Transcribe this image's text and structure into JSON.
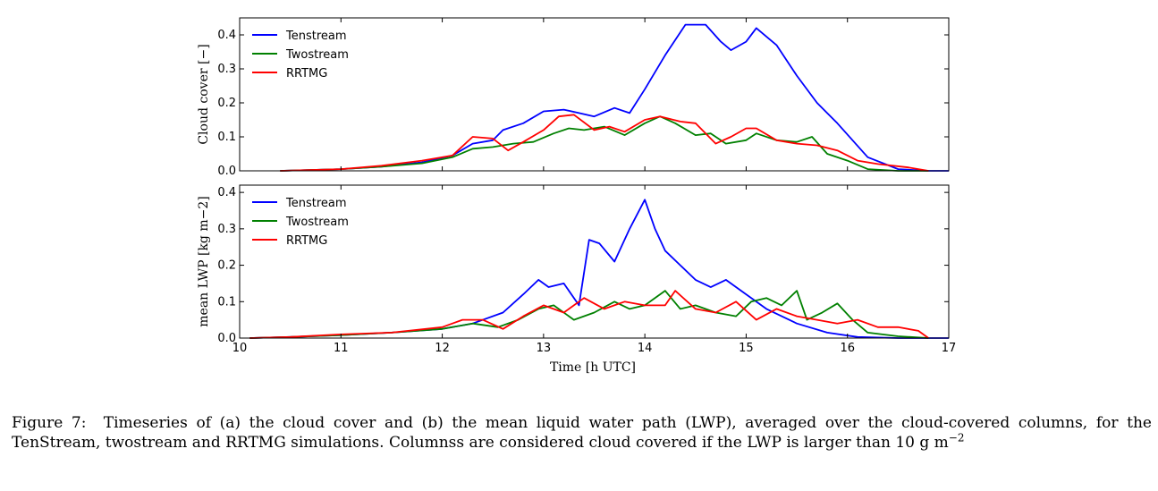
{
  "figure": {
    "caption_prefix": "Figure 7:",
    "caption_body": "Timeseries of (a) the cloud cover and (b) the mean liquid water path (LWP), averaged over the cloud-covered columns, for the TenStream, twostream and RRTMG simulations. Columnss are considered cloud covered if the LWP is larger than 10 g m",
    "caption_exponent": "−2"
  },
  "colors": {
    "Tenstream": "#0000ff",
    "Twostream": "#008000",
    "RRTMG": "#ff0000"
  },
  "chart_data": [
    {
      "type": "line",
      "title": "",
      "xlabel": "",
      "ylabel": "Cloud cover [−]",
      "xlim": [
        10,
        17
      ],
      "ylim": [
        0.0,
        0.45
      ],
      "yticks": [
        0.0,
        0.1,
        0.2,
        0.3,
        0.4
      ],
      "ytick_labels": [
        "0.0",
        "0.1",
        "0.2",
        "0.3",
        "0.4"
      ],
      "xticks": [
        10,
        11,
        12,
        13,
        14,
        15,
        16,
        17
      ],
      "legend_position": "top-left",
      "series": [
        {
          "name": "Tenstream",
          "x": [
            10.4,
            11.0,
            11.4,
            11.8,
            12.1,
            12.3,
            12.5,
            12.6,
            12.8,
            13.0,
            13.2,
            13.35,
            13.5,
            13.7,
            13.85,
            14.0,
            14.2,
            14.4,
            14.6,
            14.75,
            14.85,
            15.0,
            15.1,
            15.3,
            15.5,
            15.7,
            15.9,
            16.2,
            16.5,
            16.8,
            17.0
          ],
          "y": [
            0.0,
            0.005,
            0.012,
            0.025,
            0.045,
            0.08,
            0.09,
            0.12,
            0.14,
            0.175,
            0.18,
            0.17,
            0.16,
            0.185,
            0.17,
            0.24,
            0.34,
            0.43,
            0.43,
            0.38,
            0.355,
            0.38,
            0.42,
            0.37,
            0.28,
            0.2,
            0.14,
            0.04,
            0.005,
            0.0,
            0.0
          ]
        },
        {
          "name": "Twostream",
          "x": [
            10.4,
            11.0,
            11.4,
            11.8,
            12.1,
            12.3,
            12.5,
            12.7,
            12.9,
            13.1,
            13.25,
            13.4,
            13.6,
            13.8,
            14.0,
            14.15,
            14.3,
            14.5,
            14.65,
            14.8,
            15.0,
            15.1,
            15.3,
            15.5,
            15.65,
            15.8,
            16.0,
            16.2,
            16.5,
            16.8
          ],
          "y": [
            0.0,
            0.005,
            0.012,
            0.022,
            0.04,
            0.065,
            0.07,
            0.08,
            0.085,
            0.11,
            0.125,
            0.12,
            0.13,
            0.105,
            0.14,
            0.16,
            0.14,
            0.105,
            0.11,
            0.08,
            0.09,
            0.11,
            0.09,
            0.085,
            0.1,
            0.05,
            0.03,
            0.005,
            0.0,
            0.0
          ]
        },
        {
          "name": "RRTMG",
          "x": [
            10.4,
            11.0,
            11.4,
            11.8,
            12.1,
            12.3,
            12.5,
            12.65,
            12.8,
            13.0,
            13.15,
            13.3,
            13.5,
            13.65,
            13.8,
            14.0,
            14.15,
            14.35,
            14.5,
            14.7,
            14.85,
            15.0,
            15.1,
            15.3,
            15.5,
            15.7,
            15.9,
            16.1,
            16.3,
            16.6,
            16.8
          ],
          "y": [
            0.0,
            0.005,
            0.015,
            0.03,
            0.045,
            0.1,
            0.095,
            0.06,
            0.085,
            0.12,
            0.16,
            0.165,
            0.12,
            0.13,
            0.115,
            0.15,
            0.16,
            0.145,
            0.14,
            0.08,
            0.1,
            0.125,
            0.125,
            0.09,
            0.08,
            0.075,
            0.06,
            0.03,
            0.02,
            0.01,
            0.0
          ]
        }
      ]
    },
    {
      "type": "line",
      "title": "",
      "xlabel": "Time [h UTC]",
      "ylabel": "mean LWP [kg m−2]",
      "xlim": [
        10,
        17
      ],
      "ylim": [
        0.0,
        0.42
      ],
      "yticks": [
        0.0,
        0.1,
        0.2,
        0.3,
        0.4
      ],
      "ytick_labels": [
        "0.0",
        "0.1",
        "0.2",
        "0.3",
        "0.4"
      ],
      "xticks": [
        10,
        11,
        12,
        13,
        14,
        15,
        16,
        17
      ],
      "xtick_labels": [
        "10",
        "11",
        "12",
        "13",
        "14",
        "15",
        "16",
        "17"
      ],
      "legend_position": "top-left",
      "series": [
        {
          "name": "Tenstream",
          "x": [
            10.1,
            10.5,
            11.0,
            11.5,
            12.0,
            12.3,
            12.6,
            12.8,
            12.95,
            13.05,
            13.2,
            13.35,
            13.45,
            13.55,
            13.7,
            13.85,
            14.0,
            14.1,
            14.2,
            14.35,
            14.5,
            14.65,
            14.8,
            15.0,
            15.2,
            15.5,
            15.8,
            16.1,
            16.5,
            17.0
          ],
          "y": [
            0.0,
            0.003,
            0.008,
            0.015,
            0.025,
            0.04,
            0.07,
            0.12,
            0.16,
            0.14,
            0.15,
            0.09,
            0.27,
            0.26,
            0.21,
            0.3,
            0.38,
            0.3,
            0.24,
            0.2,
            0.16,
            0.14,
            0.16,
            0.12,
            0.08,
            0.04,
            0.015,
            0.003,
            0.0,
            0.0
          ]
        },
        {
          "name": "Twostream",
          "x": [
            10.1,
            10.5,
            11.0,
            11.5,
            12.0,
            12.3,
            12.55,
            12.75,
            12.95,
            13.1,
            13.3,
            13.5,
            13.7,
            13.85,
            14.0,
            14.2,
            14.35,
            14.5,
            14.7,
            14.9,
            15.05,
            15.2,
            15.35,
            15.5,
            15.6,
            15.75,
            15.9,
            16.05,
            16.2,
            16.5,
            16.8
          ],
          "y": [
            0.0,
            0.003,
            0.008,
            0.015,
            0.025,
            0.04,
            0.03,
            0.05,
            0.08,
            0.09,
            0.05,
            0.07,
            0.1,
            0.08,
            0.09,
            0.13,
            0.08,
            0.09,
            0.07,
            0.06,
            0.1,
            0.11,
            0.09,
            0.13,
            0.05,
            0.07,
            0.095,
            0.05,
            0.015,
            0.005,
            0.0
          ]
        },
        {
          "name": "RRTMG",
          "x": [
            10.1,
            10.5,
            11.0,
            11.5,
            12.0,
            12.2,
            12.4,
            12.6,
            12.8,
            13.0,
            13.2,
            13.4,
            13.6,
            13.8,
            14.0,
            14.2,
            14.3,
            14.5,
            14.7,
            14.9,
            15.1,
            15.3,
            15.5,
            15.7,
            15.9,
            16.1,
            16.3,
            16.5,
            16.7,
            16.8
          ],
          "y": [
            0.0,
            0.003,
            0.01,
            0.015,
            0.03,
            0.05,
            0.05,
            0.025,
            0.06,
            0.09,
            0.07,
            0.11,
            0.08,
            0.1,
            0.09,
            0.09,
            0.13,
            0.08,
            0.07,
            0.1,
            0.05,
            0.08,
            0.06,
            0.05,
            0.04,
            0.05,
            0.03,
            0.03,
            0.02,
            0.0
          ]
        }
      ]
    }
  ]
}
